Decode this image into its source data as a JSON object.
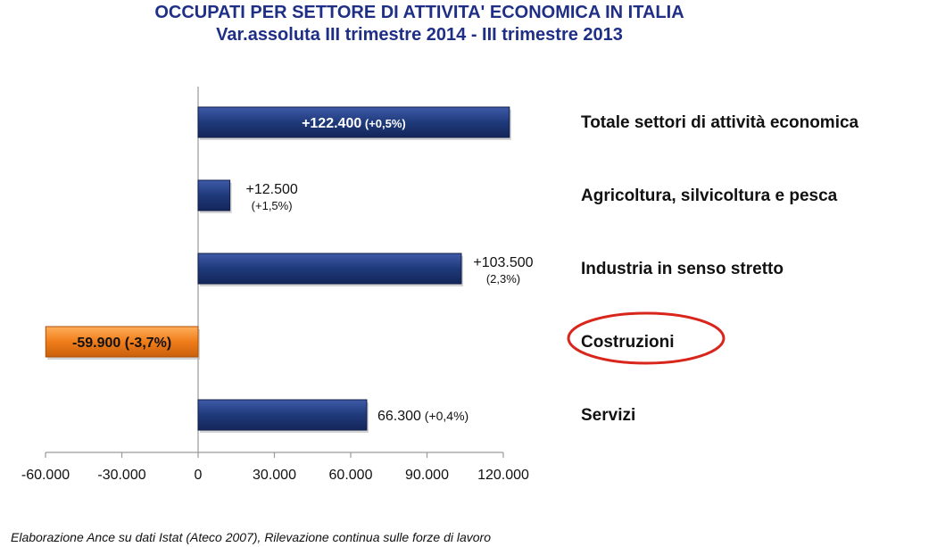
{
  "title": "OCCUPATI PER SETTORE DI ATTIVITA' ECONOMICA IN ITALIA",
  "subtitle": "Var.assoluta III trimestre 2014 - III trimestre 2013",
  "source": "Elaborazione Ance su dati Istat (Ateco 2007), Rilevazione continua sulle forze di lavoro",
  "colors": {
    "positive_bar": "#1f3a7a",
    "negative_bar": "#f07d1a",
    "title": "#1f2f86",
    "highlight_ellipse": "#d9261c"
  },
  "chart_data": {
    "type": "bar",
    "orientation": "horizontal",
    "categories": [
      "Totale settori di attività economica",
      "Agricoltura, silvicoltura e pesca",
      "Industria in senso stretto",
      "Costruzioni",
      "Servizi"
    ],
    "values": [
      122400,
      12500,
      103500,
      -59900,
      66300
    ],
    "data_labels": [
      {
        "value": "+122.400",
        "pct": "(+0,5%)"
      },
      {
        "value": "+12.500",
        "pct": "(+1,5%)"
      },
      {
        "value": "+103.500",
        "pct": "(2,3%)"
      },
      {
        "value": "-59.900",
        "pct": "(-3,7%)"
      },
      {
        "value": "66.300",
        "pct": "(+0,4%)"
      }
    ],
    "xlim": [
      -60000,
      120000
    ],
    "xticks": [
      -60000,
      -30000,
      0,
      30000,
      60000,
      90000,
      120000
    ],
    "xtick_labels": [
      "-60.000",
      "-30.000",
      "0",
      "30.000",
      "60.000",
      "90.000",
      "120.000"
    ],
    "highlighted_category": "Costruzioni",
    "grid": false,
    "legend": "none"
  }
}
